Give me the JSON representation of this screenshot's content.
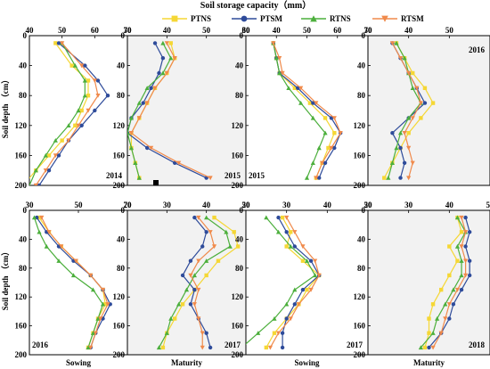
{
  "figure": {
    "title": "Soil storage capacity（mm）",
    "ylabel": "Soil depth （cm）",
    "column_labels": [
      "Sowing",
      "Maturity",
      "Sowing",
      "Maturity"
    ]
  },
  "legend": [
    {
      "name": "PTNS",
      "color": "#f5d735",
      "marker": "square"
    },
    {
      "name": "PTSM",
      "color": "#2e4b9a",
      "marker": "circle"
    },
    {
      "name": "RTNS",
      "color": "#4caf3c",
      "marker": "triangle"
    },
    {
      "name": "RTSM",
      "color": "#f08a4b",
      "marker": "triangle-down"
    }
  ],
  "chart_data": [
    {
      "type": "line",
      "label": "2014",
      "y": [
        10,
        40,
        60,
        80,
        100,
        120,
        140,
        160,
        180,
        200
      ],
      "ylim": [
        0,
        200
      ],
      "yticks": [
        0,
        40,
        80,
        120,
        160,
        200
      ],
      "xlim": [
        40,
        70
      ],
      "xticks": [
        40,
        50,
        60,
        70
      ],
      "shaded": false,
      "series": [
        {
          "name": "PTNS",
          "values": [
            48,
            53,
            58,
            58,
            56,
            54,
            50,
            46,
            42,
            38
          ]
        },
        {
          "name": "PTSM",
          "values": [
            49,
            57,
            61,
            64,
            60,
            56,
            52,
            49,
            46,
            43
          ]
        },
        {
          "name": "RTNS",
          "values": [
            50,
            54,
            57,
            57,
            55,
            52,
            48,
            45,
            42,
            40
          ]
        },
        {
          "name": "RTSM",
          "values": [
            50,
            56,
            60,
            61,
            58,
            55,
            52,
            48,
            45,
            42
          ]
        }
      ]
    },
    {
      "type": "line",
      "label": "2015",
      "y": [
        10,
        30,
        50,
        70,
        90,
        110,
        130,
        150,
        170,
        190
      ],
      "ylim": [
        0,
        200
      ],
      "yticks": [
        0,
        40,
        80,
        120,
        160,
        200
      ],
      "xlim": [
        30,
        60
      ],
      "xticks": [
        30,
        40,
        50,
        60
      ],
      "shaded": true,
      "series": [
        {
          "name": "PTNS",
          "values": [
            41,
            42,
            40,
            37,
            35,
            33,
            31,
            31,
            32,
            33
          ]
        },
        {
          "name": "PTSM",
          "values": [
            37,
            39,
            38,
            36,
            34,
            31,
            30,
            35,
            42,
            50
          ]
        },
        {
          "name": "RTNS",
          "values": [
            39,
            41,
            39,
            35,
            33,
            31,
            30,
            31,
            32,
            33
          ]
        },
        {
          "name": "RTSM",
          "values": [
            40,
            42,
            40,
            37,
            35,
            33,
            31,
            36,
            43,
            51
          ]
        }
      ]
    },
    {
      "type": "line",
      "label": "2015",
      "y": [
        10,
        30,
        50,
        70,
        90,
        110,
        130,
        150,
        170,
        190
      ],
      "ylim": [
        0,
        200
      ],
      "yticks": [
        0,
        40,
        80,
        120,
        160,
        200
      ],
      "xlim": [
        30,
        70
      ],
      "xticks": [
        30,
        40,
        50,
        60,
        70
      ],
      "shaded": false,
      "series": [
        {
          "name": "PTNS",
          "values": [
            39,
            40,
            41,
            46,
            51,
            56,
            59,
            57,
            55,
            53
          ]
        },
        {
          "name": "PTSM",
          "values": [
            39,
            40,
            41,
            47,
            52,
            58,
            61,
            59,
            56,
            54
          ]
        },
        {
          "name": "RTNS",
          "values": [
            39,
            40,
            41,
            44,
            48,
            52,
            56,
            54,
            52,
            50
          ]
        },
        {
          "name": "RTSM",
          "values": [
            39,
            41,
            42,
            48,
            53,
            59,
            61,
            58,
            55,
            53
          ]
        }
      ]
    },
    {
      "type": "line",
      "label": "2016",
      "y": [
        10,
        30,
        50,
        70,
        90,
        110,
        130,
        150,
        170,
        190
      ],
      "ylim": [
        0,
        200
      ],
      "yticks": [
        0,
        40,
        80,
        120,
        160,
        200
      ],
      "xlim": [
        30,
        60
      ],
      "xticks": [
        30,
        40,
        50
      ],
      "shaded": true,
      "series": [
        {
          "name": "PTNS",
          "values": [
            37,
            39,
            41,
            44,
            46,
            43,
            40,
            38,
            36,
            34
          ]
        },
        {
          "name": "PTSM",
          "values": [
            36,
            38,
            40,
            42,
            44,
            40,
            36,
            38,
            39,
            38
          ]
        },
        {
          "name": "RTNS",
          "values": [
            37,
            39,
            40,
            41,
            43,
            40,
            38,
            37,
            36,
            35
          ]
        },
        {
          "name": "RTSM",
          "values": [
            36,
            38,
            40,
            42,
            43,
            41,
            39,
            40,
            41,
            40
          ]
        }
      ]
    },
    {
      "type": "line",
      "label": "2016",
      "y": [
        10,
        30,
        50,
        70,
        90,
        110,
        130,
        150,
        170,
        190
      ],
      "ylim": [
        0,
        200
      ],
      "yticks": [
        0,
        40,
        80,
        120,
        160,
        200
      ],
      "xlim": [
        30,
        70
      ],
      "xticks": [
        30,
        50,
        70
      ],
      "shaded": false,
      "series": [
        {
          "name": "PTNS",
          "values": [
            34,
            38,
            43,
            49,
            55,
            60,
            61,
            58,
            56,
            54
          ]
        },
        {
          "name": "PTSM",
          "values": [
            33,
            37,
            42,
            48,
            55,
            60,
            63,
            60,
            57,
            55
          ]
        },
        {
          "name": "RTNS",
          "values": [
            32,
            34,
            37,
            42,
            48,
            56,
            60,
            58,
            56,
            54
          ]
        },
        {
          "name": "RTSM",
          "values": [
            35,
            38,
            43,
            49,
            55,
            60,
            62,
            59,
            57,
            55
          ]
        }
      ]
    },
    {
      "type": "line",
      "label": "2017",
      "y": [
        10,
        30,
        50,
        70,
        90,
        110,
        130,
        150,
        170,
        190
      ],
      "ylim": [
        0,
        200
      ],
      "yticks": [
        0,
        40,
        80,
        120,
        160,
        200
      ],
      "xlim": [
        20,
        50
      ],
      "xticks": [
        20,
        30,
        40,
        50
      ],
      "shaded": true,
      "series": [
        {
          "name": "PTNS",
          "values": [
            42,
            47,
            48,
            43,
            40,
            37,
            34,
            32,
            30,
            29
          ]
        },
        {
          "name": "PTSM",
          "values": [
            37,
            40,
            39,
            36,
            34,
            37,
            36,
            38,
            40,
            41
          ]
        },
        {
          "name": "RTNS",
          "values": [
            40,
            45,
            46,
            40,
            37,
            35,
            33,
            31,
            30,
            28
          ]
        },
        {
          "name": "RTSM",
          "values": [
            38,
            41,
            42,
            38,
            36,
            38,
            37,
            38,
            39,
            39
          ]
        }
      ]
    },
    {
      "type": "line",
      "label": "2017",
      "y": [
        10,
        30,
        50,
        70,
        90,
        110,
        130,
        150,
        170,
        190
      ],
      "ylim": [
        0,
        200
      ],
      "yticks": [
        0,
        40,
        80,
        120,
        160,
        200
      ],
      "xlim": [
        20,
        50
      ],
      "xticks": [
        20,
        30,
        40,
        50
      ],
      "shaded": false,
      "series": [
        {
          "name": "PTNS",
          "values": [
            29,
            31,
            30,
            34,
            38,
            35,
            33,
            30,
            27,
            25
          ]
        },
        {
          "name": "PTSM",
          "values": [
            28,
            30,
            32,
            36,
            38,
            34,
            32,
            30,
            29,
            29
          ]
        },
        {
          "name": "RTNS",
          "values": [
            25,
            28,
            31,
            35,
            37,
            32,
            30,
            27,
            23,
            19
          ]
        },
        {
          "name": "RTSM",
          "values": [
            30,
            32,
            34,
            37,
            38,
            36,
            33,
            31,
            28,
            26
          ]
        }
      ]
    },
    {
      "type": "line",
      "label": "2018",
      "y": [
        10,
        30,
        50,
        70,
        90,
        110,
        130,
        150,
        170,
        190
      ],
      "ylim": [
        0,
        200
      ],
      "yticks": [
        0,
        40,
        80,
        120,
        160,
        200
      ],
      "xlim": [
        20,
        50
      ],
      "xticks": [
        20,
        30,
        40,
        50
      ],
      "shaded": true,
      "series": [
        {
          "name": "PTNS",
          "values": [
            42,
            43,
            40,
            42,
            40,
            38,
            36,
            35,
            35,
            34
          ]
        },
        {
          "name": "PTSM",
          "values": [
            44,
            45,
            44,
            45,
            45,
            43,
            41,
            40,
            38,
            35
          ]
        },
        {
          "name": "RTNS",
          "values": [
            42,
            44,
            42,
            43,
            43,
            41,
            39,
            37,
            36,
            33
          ]
        },
        {
          "name": "RTSM",
          "values": [
            43,
            44,
            43,
            44,
            44,
            42,
            40,
            39,
            38,
            36
          ]
        }
      ]
    }
  ]
}
